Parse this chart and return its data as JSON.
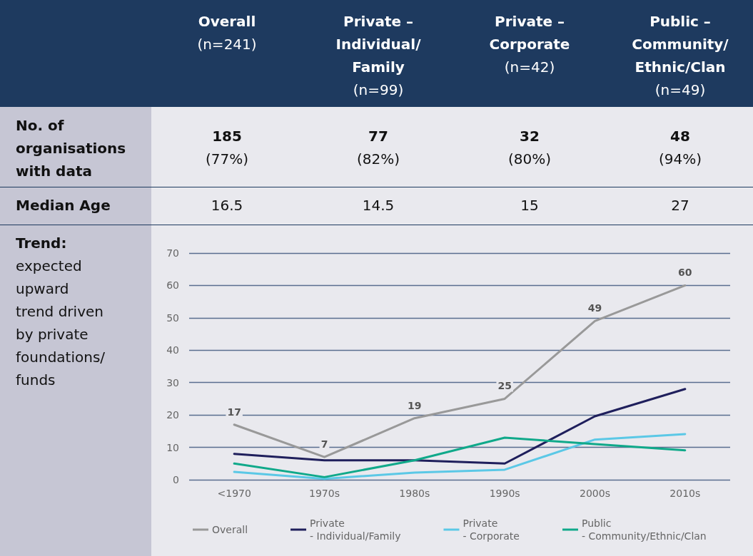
{
  "chart_data": [
    {
      "type": "other",
      "annotations": [
        "Overall",
        "(n=241)",
        "Private –\nIndividual/\nFamily",
        "(n=99)",
        "Private –\nCorporate",
        "(n=42)",
        "Public –\nCommunity/\nEthnic/Clan",
        "(n=49)",
        "No. of\norganisations\nwith data",
        "185",
        "(77%)",
        "77",
        "(82%)",
        "32",
        "(80%)",
        "48",
        "(94%)",
        "Median Age",
        "16.5",
        "14.5",
        "15",
        "27",
        "Trend:",
        "expected\nupward\ntrend driven\nby private\nfoundations/\nfunds"
      ]
    },
    {
      "type": "line",
      "categories": [
        "<1970",
        "1970s",
        "1980s",
        "1990s",
        "2000s",
        "2010s"
      ],
      "series": [
        {
          "name": "Overall",
          "color": "#999999",
          "values": [
            17,
            7,
            19,
            25,
            49,
            60
          ],
          "value_labels": [
            "17",
            "7",
            "19",
            "25",
            "49",
            "60"
          ]
        },
        {
          "name": "Private\n- Individual/Family",
          "color": "#1f1f5c",
          "values": [
            8,
            6,
            6,
            5,
            19.6,
            28
          ]
        },
        {
          "name": "Private\n- Corporate",
          "color": "#5bc8e6",
          "values": [
            2.4,
            0.3,
            2.2,
            3.1,
            12.4,
            14.1
          ]
        },
        {
          "name": "Public\n- Community/Ethnic/Clan",
          "color": "#10a98a",
          "values": [
            5,
            0.8,
            6,
            13,
            11,
            9.1
          ]
        }
      ],
      "ylim": [
        0,
        70
      ],
      "yticks": [
        0,
        10,
        20,
        30,
        40,
        50,
        60,
        70
      ],
      "grid": "y",
      "legend": "bottom",
      "marker": "none"
    }
  ]
}
